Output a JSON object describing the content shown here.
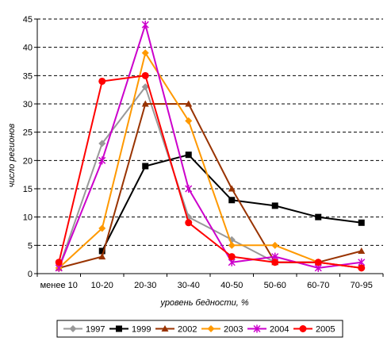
{
  "chart_data": {
    "type": "line",
    "xlabel": "уровень бедности, %",
    "ylabel": "число регионов",
    "categories": [
      "менее 10",
      "10-20",
      "20-30",
      "30-40",
      "40-50",
      "50-60",
      "60-70",
      "70-95"
    ],
    "ylim": [
      0,
      45
    ],
    "yticks": [
      0,
      5,
      10,
      15,
      20,
      25,
      30,
      35,
      40,
      45
    ],
    "grid": "horizontal dashed",
    "legend_position": "bottom",
    "series": [
      {
        "name": "1997",
        "color": "#999999",
        "marker": "diamond",
        "values": [
          1,
          23,
          33,
          10,
          6,
          2,
          2,
          1
        ]
      },
      {
        "name": "1999",
        "color": "#000000",
        "marker": "square",
        "values": [
          null,
          4,
          19,
          21,
          13,
          12,
          10,
          9
        ]
      },
      {
        "name": "2002",
        "color": "#993300",
        "marker": "triangle",
        "values": [
          1,
          3,
          30,
          30,
          15,
          2,
          2,
          4
        ]
      },
      {
        "name": "2003",
        "color": "#ff9900",
        "marker": "diamond",
        "values": [
          1,
          8,
          39,
          27,
          5,
          5,
          2,
          1
        ]
      },
      {
        "name": "2004",
        "color": "#cc00cc",
        "marker": "star",
        "values": [
          1,
          20,
          44,
          15,
          2,
          3,
          1,
          2
        ]
      },
      {
        "name": "2005",
        "color": "#ff0000",
        "marker": "circle",
        "values": [
          2,
          34,
          35,
          9,
          3,
          2,
          2,
          1
        ]
      }
    ]
  }
}
